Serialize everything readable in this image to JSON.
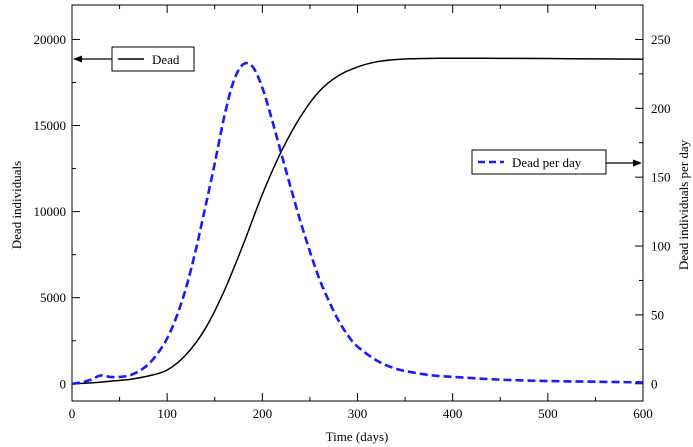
{
  "chart_data": {
    "type": "line",
    "xlabel": "Time (days)",
    "ylabel_left": "Dead individuals",
    "ylabel_right": "Dead individuals per day",
    "xlim": [
      0,
      600
    ],
    "ylim_left": [
      -1000,
      22000
    ],
    "ylim_right": [
      -12.5,
      275
    ],
    "x_ticks": [
      0,
      100,
      200,
      300,
      400,
      500,
      600
    ],
    "y_left_ticks": [
      0,
      5000,
      10000,
      15000,
      20000
    ],
    "y_right_ticks": [
      0,
      50,
      100,
      150,
      200,
      250
    ],
    "grid": false,
    "series": [
      {
        "name": "Dead",
        "axis": "left",
        "color": "#000000",
        "style": "solid",
        "x": [
          0,
          20,
          40,
          60,
          80,
          100,
          120,
          140,
          160,
          180,
          200,
          220,
          240,
          260,
          280,
          300,
          320,
          340,
          360,
          380,
          400,
          450,
          500,
          550,
          600
        ],
        "y": [
          0,
          50,
          150,
          250,
          450,
          800,
          1700,
          3200,
          5400,
          8100,
          11000,
          13500,
          15500,
          17000,
          17900,
          18400,
          18700,
          18830,
          18880,
          18900,
          18910,
          18900,
          18890,
          18870,
          18850
        ]
      },
      {
        "name": "Dead per day",
        "axis": "right",
        "color": "#1a1aff",
        "style": "dashed",
        "x": [
          0,
          10,
          20,
          30,
          40,
          50,
          60,
          70,
          80,
          90,
          100,
          110,
          120,
          130,
          140,
          150,
          160,
          170,
          180,
          190,
          200,
          210,
          220,
          230,
          240,
          250,
          260,
          270,
          280,
          290,
          300,
          320,
          340,
          360,
          380,
          400,
          450,
          500,
          550,
          600
        ],
        "y": [
          0,
          1,
          3,
          6,
          5,
          5,
          6,
          9,
          14,
          22,
          33,
          49,
          70,
          97,
          128,
          160,
          194,
          220,
          232,
          230,
          215,
          192,
          167,
          142,
          118,
          96,
          76,
          60,
          46,
          35,
          27,
          17,
          11,
          8,
          6,
          5,
          3,
          2,
          1.5,
          1
        ]
      }
    ],
    "legend": [
      {
        "label": "Dead",
        "series": "Dead",
        "placement": "top-left",
        "arrow": "left"
      },
      {
        "label": "Dead per day",
        "series": "Dead per day",
        "placement": "middle-right",
        "arrow": "right"
      }
    ]
  }
}
